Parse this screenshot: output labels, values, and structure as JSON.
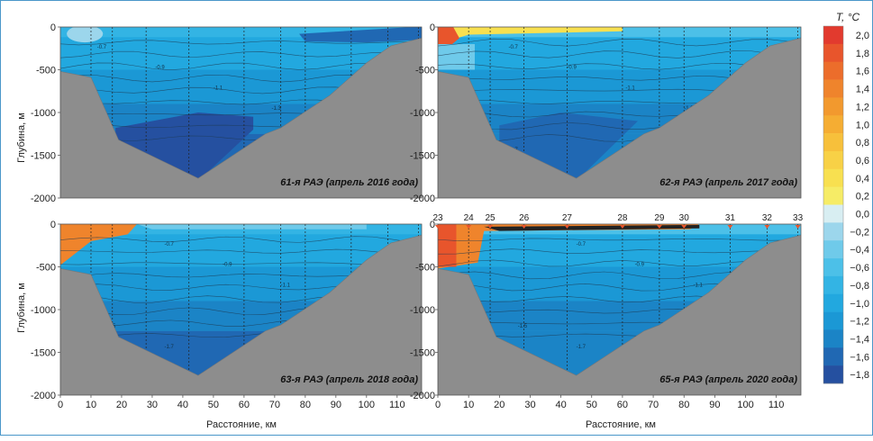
{
  "chart_data": {
    "type": "heatmap",
    "ylabel": "Глубина, м",
    "xlabel": "Расстояние, км",
    "xlim": [
      0,
      118
    ],
    "ylim": [
      0,
      2000
    ],
    "x_ticks": [
      "0",
      "10",
      "20",
      "30",
      "40",
      "50",
      "60",
      "70",
      "80",
      "90",
      "100",
      "110"
    ],
    "y_ticks": [
      "0",
      "-500",
      "-1000",
      "-1500",
      "-2000"
    ],
    "colorbar": {
      "title": "T, °C",
      "ticks": [
        "2,0",
        "1,8",
        "1,6",
        "1,4",
        "1,2",
        "1,0",
        "0,8",
        "0,6",
        "0,4",
        "0,2",
        "0,0",
        "−0,2",
        "−0,4",
        "−0,6",
        "−0,8",
        "−1,0",
        "−1,2",
        "−1,4",
        "−1,6",
        "−1,8"
      ],
      "values": [
        2.0,
        1.8,
        1.6,
        1.4,
        1.2,
        1.0,
        0.8,
        0.6,
        0.4,
        0.2,
        0.0,
        -0.2,
        -0.4,
        -0.6,
        -0.8,
        -1.0,
        -1.2,
        -1.4,
        -1.6,
        -1.8
      ],
      "colors": [
        "#e23a2e",
        "#e8552c",
        "#ec6d2b",
        "#ef842c",
        "#f2992e",
        "#f5ad33",
        "#f7c03b",
        "#f8d146",
        "#f8e050",
        "#f6ec66",
        "#d8eef2",
        "#9cd6ec",
        "#6fcaea",
        "#4cc0e8",
        "#33b4e4",
        "#22a8df",
        "#1b98d5",
        "#1b84c6",
        "#2068b3",
        "#2550a0"
      ]
    },
    "panels": [
      {
        "title": "61-я РАЭ (апрель 2016 года)"
      },
      {
        "title": "62-я РАЭ (апрель 2017 года)"
      },
      {
        "title": "63-я РАЭ (апрель 2018 года)"
      },
      {
        "title": "65-я РАЭ (апрель 2020 года)"
      }
    ],
    "stations": {
      "labels": [
        "23",
        "24",
        "25",
        "26",
        "27",
        "28",
        "29",
        "30",
        "31",
        "32",
        "33"
      ],
      "x_km": [
        0,
        10,
        17,
        28,
        42,
        60,
        72,
        80,
        95,
        107,
        117
      ]
    },
    "contour_labels": [
      "-0.7",
      "-0.9",
      "-1.1",
      "-1.3",
      "-1.5",
      "-1.7"
    ]
  }
}
